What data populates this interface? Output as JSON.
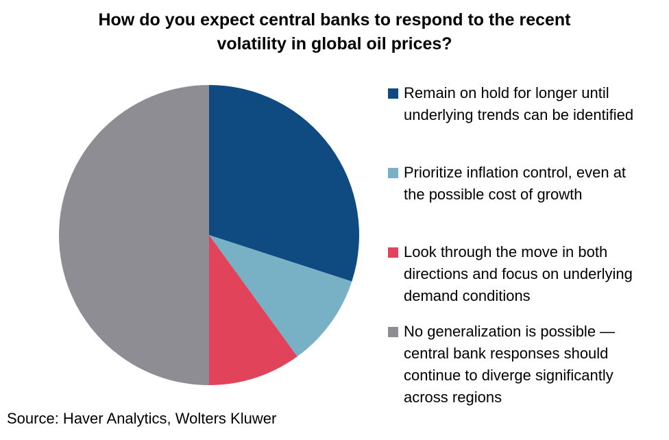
{
  "chart_data": {
    "type": "pie",
    "title_lines": [
      "How do you expect central banks to respond to the recent",
      "volatility in global oil prices?"
    ],
    "slices": [
      {
        "label_lines": [
          "Remain on hold for longer until",
          "underlying trends can be identified"
        ],
        "value": 30,
        "color": "#0F4A80"
      },
      {
        "label_lines": [
          "Prioritize inflation control, even at",
          "the possible cost of growth"
        ],
        "value": 10,
        "color": "#78B0C6"
      },
      {
        "label_lines": [
          "Look through the move in both",
          "directions and focus on underlying",
          "demand conditions"
        ],
        "value": 10,
        "color": "#E0435A"
      },
      {
        "label_lines": [
          "No generalization is possible —",
          "central bank responses should",
          "continue to diverge significantly",
          "across regions"
        ],
        "value": 50,
        "color": "#8E8D94"
      }
    ],
    "legend_position": "right",
    "source": "Source: Haver Analytics, Wolters Kluwer"
  }
}
